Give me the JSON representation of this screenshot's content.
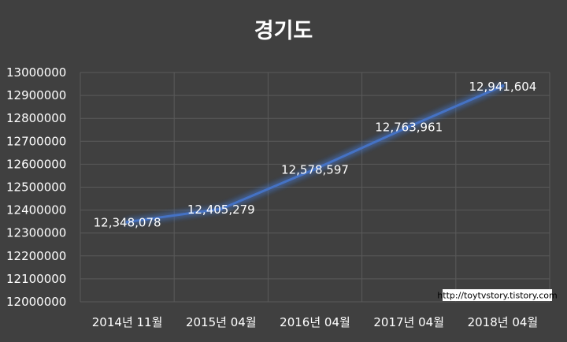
{
  "chart_data": {
    "type": "line",
    "title": "경기도",
    "categories": [
      "2014년 11월",
      "2015년 04월",
      "2016년 04월",
      "2017년 04월",
      "2018년 04월"
    ],
    "series": [
      {
        "values": [
          12348078,
          12405279,
          12578597,
          12763961,
          12941604
        ]
      }
    ],
    "data_labels": [
      "12,348,078",
      "12,405,279",
      "12,578,597",
      "12,763,961",
      "12,941,604"
    ],
    "y_ticks": [
      "12000000",
      "12100000",
      "12200000",
      "12300000",
      "12400000",
      "12500000",
      "12600000",
      "12700000",
      "12800000",
      "12900000",
      "13000000"
    ],
    "ylim": [
      12000000,
      13000000
    ],
    "grid": true,
    "legend": "none",
    "line_color": "#4472c4",
    "background_color": "#404040"
  },
  "watermark": "http://toytvstory.tistory.com"
}
